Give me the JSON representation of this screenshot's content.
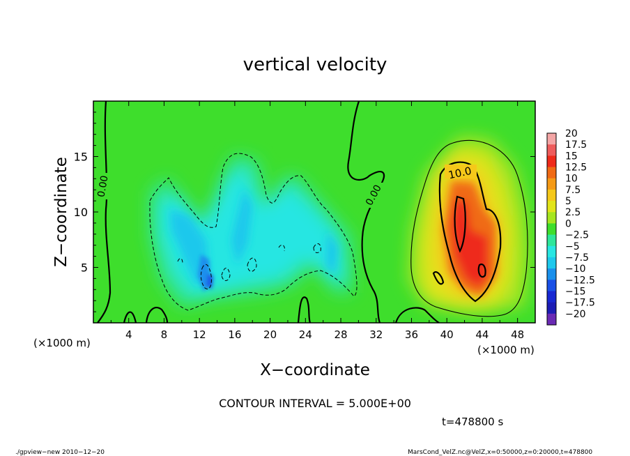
{
  "chart_data": {
    "type": "heatmap",
    "title": "vertical velocity",
    "xlabel": "X−coordinate",
    "ylabel": "Z−coordinate",
    "x_unit": "(×1000 m)",
    "x_unit_right": "(×1000 m)",
    "xlim": [
      0,
      50
    ],
    "ylim": [
      0,
      20
    ],
    "x_ticks": [
      "4",
      "8",
      "12",
      "16",
      "20",
      "24",
      "28",
      "32",
      "36",
      "40",
      "44",
      "48"
    ],
    "y_ticks": [
      "5",
      "10",
      "15"
    ],
    "colorbar": {
      "labels": [
        "20",
        "17.5",
        "15",
        "12.5",
        "10",
        "7.5",
        "5",
        "2.5",
        "0",
        "−2.5",
        "−5",
        "−7.5",
        "−10",
        "−12.5",
        "−15",
        "−17.5",
        "−20"
      ],
      "colors": [
        "#f4a6a6",
        "#ee5c5c",
        "#ee2a1a",
        "#f06a14",
        "#f59a16",
        "#f5c81a",
        "#e2e41a",
        "#a6e620",
        "#3ede2c",
        "#2ee69a",
        "#28e6e2",
        "#1ec8ec",
        "#1a90ec",
        "#1a50e6",
        "#1828d2",
        "#1c1cb4",
        "#6a2ab4"
      ]
    },
    "contour_labels": [
      "0.00",
      "0.00",
      "10.0"
    ],
    "features": [
      {
        "kind": "updraft",
        "x": 42.5,
        "z": 8.5,
        "peak": 15
      },
      {
        "kind": "downdraft",
        "x": 12.5,
        "z": 6.5,
        "peak": -10
      }
    ],
    "grid": false
  },
  "annotations": {
    "contour_interval": "CONTOUR INTERVAL = 5.000E+00",
    "time": "t=478800 s",
    "footer_left": "./gpview−new  2010−12−20",
    "footer_right": "MarsCond_VelZ.nc@VelZ,x=0:50000,z=0:20000,t=478800"
  }
}
